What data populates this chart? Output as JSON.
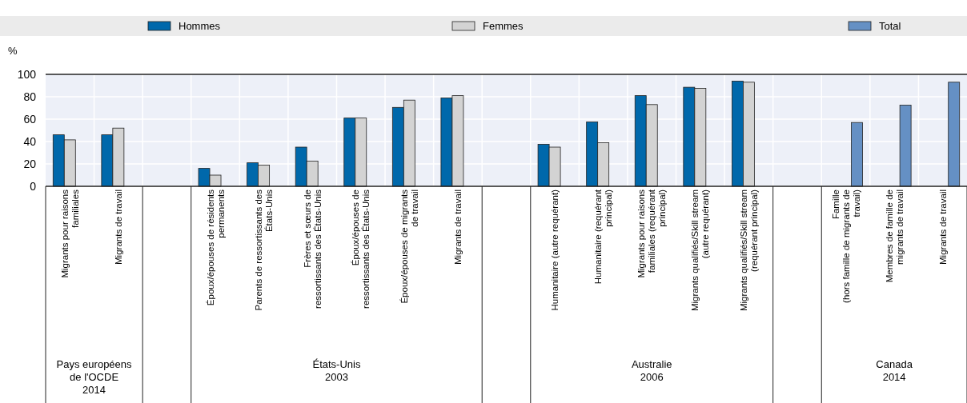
{
  "chart_data": {
    "type": "bar",
    "ylabel": "%",
    "categories": [
      "Migrants pour raisons\nfamiliales",
      "Migrants de travail",
      null,
      "Époux/épouses de résidents\npermanents",
      "Parents de ressortissants des\nÉtats-Unis",
      "Frères et sœurs de\nressortissants des États-Unis",
      "Époux/épouses de\nressortissants des États-Unis",
      "Époux/épouses de  migrants\nde travail",
      "Migrants de travail",
      null,
      "Humanitaire (autre requérant)",
      "Humanitaire (requérant\nprincipal)",
      "Migrants pour raisons\nfamiliales (requérant\nprincipal)",
      "Migrants qualifiés/Skill stream\n(autre requérant)",
      "Migrants qualifiés/Skill stream\n(requérant principal)",
      null,
      "Famille\n(hors famille de migrants de\ntravail)",
      "Membres de famille de\nmigrants de travail",
      "Migrants de travail"
    ],
    "series": [
      {
        "name": "Hommes",
        "color": "#0068ab",
        "values": [
          46,
          46,
          null,
          16,
          21,
          35,
          61,
          70.5,
          79,
          null,
          37.5,
          57.5,
          81,
          88.5,
          94,
          null,
          null,
          null,
          null
        ]
      },
      {
        "name": "Femmes",
        "color": "#d3d3d3",
        "values": [
          41.5,
          52,
          null,
          10,
          19,
          22.5,
          61,
          77,
          81,
          null,
          35,
          39,
          73,
          87.5,
          93,
          null,
          null,
          null,
          null
        ]
      },
      {
        "name": "Total",
        "color": "#6590c4",
        "values": [
          null,
          null,
          null,
          null,
          null,
          null,
          null,
          null,
          null,
          null,
          null,
          null,
          null,
          null,
          null,
          null,
          57,
          72.5,
          93
        ]
      }
    ],
    "ylim": [
      0,
      100
    ],
    "yticks": [
      0,
      20,
      40,
      60,
      80,
      100
    ],
    "grid": true,
    "legend": "top",
    "annotations": [
      "Pays européens\nde l'OCDE\n2014",
      "États-Unis\n2003",
      "Australie\n2006",
      "Canada\n2014"
    ]
  }
}
